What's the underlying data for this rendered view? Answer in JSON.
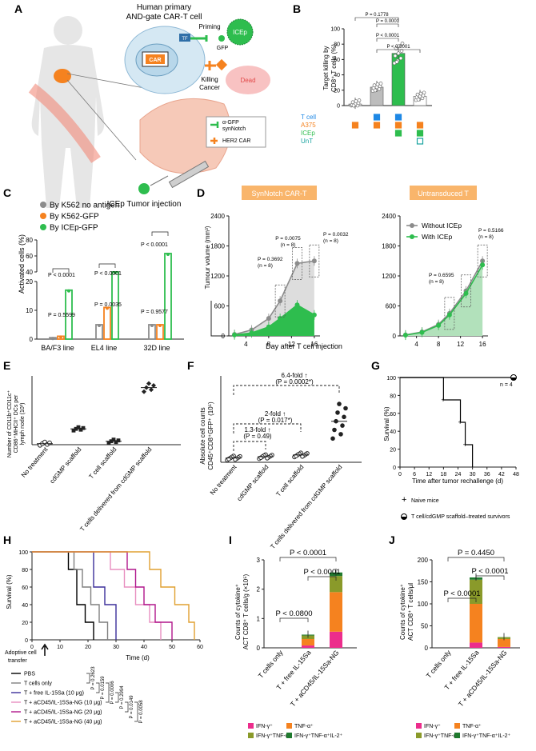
{
  "panel_letters": [
    "A",
    "B",
    "C",
    "D",
    "E",
    "F",
    "G",
    "H",
    "I",
    "J"
  ],
  "colors": {
    "orange": "#f5821f",
    "green": "#2ebd4e",
    "gray": "#8c8c8c",
    "blue": "#1e88e5",
    "teal": "#19a3a0",
    "pink": "#ec2d8c",
    "olive": "#8a9a2a",
    "darkgreen": "#1f7a2e",
    "body": "#e6e6e6"
  },
  "A": {
    "title_line1": "Human primary",
    "title_line2": "AND-gate CAR-T cell",
    "priming": "Priming",
    "icep": "ICEp",
    "gfp": "GFP",
    "tf": "TF",
    "car": "CAR",
    "killing": "Killing",
    "cancer": "Cancer",
    "dead": "Dead",
    "legend1_line1": "α-GFP",
    "legend1_line2": "synNotch",
    "legend2": "HER2 CAR",
    "injection": "ICEp Tumor injection"
  },
  "chart_data": [
    {
      "panel": "B",
      "type": "bar",
      "ylabel_line1": "Target killing by",
      "ylabel_line2": "CD8⁺ T cells (%)",
      "ylim": [
        0,
        100
      ],
      "yticks": [
        0,
        20,
        40,
        60,
        80,
        100
      ],
      "values": [
        2,
        24,
        68,
        12
      ],
      "colors": [
        "#ffffff",
        "#bdbdbd",
        "#2ebd4e",
        "#ffffff"
      ],
      "pvalues": [
        "P = 0.1778",
        "P = 0.0001",
        "P < 0.0001",
        "P < 0.0001"
      ],
      "rows": [
        "T cell",
        "A375",
        "ICEp",
        "UnT"
      ],
      "row_colors": [
        "#1e88e5",
        "#f5821f",
        "#2ebd4e",
        "#19a3a0"
      ]
    },
    {
      "panel": "C",
      "type": "bar",
      "ylabel": "Activated cells (%)",
      "yticks_low": [
        0,
        10,
        20
      ],
      "yticks_high": [
        40,
        60,
        80
      ],
      "categories": [
        "BA/F3 line",
        "EL4 line",
        "32D line"
      ],
      "series": [
        {
          "name": "By K562 no antigen",
          "color": "#8c8c8c",
          "values": [
            0.5,
            5,
            5
          ]
        },
        {
          "name": "By K562-GFP",
          "color": "#f5821f",
          "values": [
            1.0,
            11,
            5
          ]
        },
        {
          "name": "By ICEp-GFP",
          "color": "#2ebd4e",
          "values": [
            17,
            27,
            63
          ]
        }
      ],
      "pvalues": [
        "P < 0.0001",
        "P = 0.5599",
        "P < 0.0001",
        "P = 0.0035",
        "P < 0.0001",
        "P = 0.9577"
      ]
    },
    {
      "panel": "D1",
      "type": "line",
      "title": "SynNotch CAR-T",
      "ylabel": "Tumour volume (mm³)",
      "xlabel": "Day after T cell injection",
      "x": [
        2,
        5,
        8,
        10,
        13,
        16
      ],
      "xticks": [
        4,
        8,
        12,
        16
      ],
      "ylim": [
        0,
        2400
      ],
      "yticks": [
        0,
        600,
        1200,
        1800,
        2400
      ],
      "series": [
        {
          "name": "Without ICEp",
          "color": "#8c8c8c",
          "values": [
            30,
            120,
            350,
            700,
            1450,
            1500
          ]
        },
        {
          "name": "With ICEp",
          "color": "#2ebd4e",
          "values": [
            20,
            60,
            180,
            350,
            620,
            420
          ]
        }
      ],
      "pvalues": [
        "P = 0.0075",
        "(n = 8)",
        "P = 0.3692",
        "(n = 8)",
        "P = 0.0032",
        "(n = 8)"
      ]
    },
    {
      "panel": "D2",
      "type": "line",
      "title": "Untransduced T",
      "x": [
        2,
        5,
        8,
        10,
        13,
        16
      ],
      "xticks": [
        4,
        8,
        12,
        16
      ],
      "ylim": [
        0,
        2400
      ],
      "yticks": [
        0,
        600,
        1200,
        1800,
        2400
      ],
      "series": [
        {
          "name": "Without ICEp",
          "color": "#8c8c8c",
          "values": [
            20,
            80,
            230,
            450,
            900,
            1500
          ]
        },
        {
          "name": "With ICEp",
          "color": "#2ebd4e",
          "values": [
            15,
            70,
            210,
            420,
            850,
            1420
          ]
        }
      ],
      "pvalues": [
        "P = 0.5166",
        "(n = 8)",
        "P = 0.6595",
        "(n = 8)"
      ]
    },
    {
      "panel": "E",
      "type": "scatter",
      "ylabel_line1": "Number of CD11b⁺CD11c⁺",
      "ylabel_line2": "CD86⁺MHCII⁺ DCs per",
      "ylabel_line3": "lymph node (10³)",
      "categories": [
        "No treatment",
        "cdGMP scaffold",
        "T cell scaffold",
        "T cells delivered from cdGMP scaffold"
      ],
      "values": [
        1.5,
        23,
        5,
        83
      ],
      "ylim": [
        0,
        100
      ]
    },
    {
      "panel": "F",
      "type": "scatter",
      "ylabel_line1": "Absolute cell counts",
      "ylabel_line2": "CD45⁺CD8⁺GFP⁺ (10⁵)",
      "categories": [
        "No treatment",
        "cdGMP scaffold",
        "T cell scaffold",
        "T cells delivered from cdGMP scaffold"
      ],
      "values": [
        0.1,
        0.13,
        0.17,
        0.95
      ],
      "ylim": [
        0,
        2
      ],
      "annotations": [
        "6.4-fold ↑",
        "(P = 0.0002*)",
        "2-fold ↑",
        "(P = 0.017*)",
        "1.3-fold ↑",
        "(P = 0.49)"
      ]
    },
    {
      "panel": "G",
      "type": "line",
      "ylabel": "Survival (%)",
      "xlabel": "Time after tumor rechallenge (d)",
      "xticks": [
        0,
        6,
        12,
        18,
        24,
        30,
        36,
        42,
        48
      ],
      "yticks": [
        0,
        20,
        40,
        60,
        80,
        100
      ],
      "series": [
        {
          "name": "Naive mice",
          "color": "#000000"
        },
        {
          "name": "T cell/cdGMP scaffold–treated survivors",
          "color": "#000000"
        }
      ],
      "n_label": "n = 4"
    },
    {
      "panel": "H",
      "type": "line",
      "ylabel": "Survival (%)",
      "xlabel": "Time (d)",
      "xticks": [
        0,
        10,
        20,
        30,
        40,
        50,
        60
      ],
      "yticks": [
        0,
        20,
        40,
        60,
        80,
        100
      ],
      "arrow_label_line1": "Adoptive cell",
      "arrow_label_line2": "transfer",
      "series": [
        {
          "name": "PBS",
          "color": "#000000"
        },
        {
          "name": "T cells only",
          "color": "#7f7f7f"
        },
        {
          "name": "T + free IL-15Sa (10 μg)",
          "color": "#3b2f9a"
        },
        {
          "name": "T + aCD45/IL-15Sa-NG (10 μg)",
          "color": "#e88fc0"
        },
        {
          "name": "T + aCD45/IL-15Sa-NG (20 μg)",
          "color": "#b0178c"
        },
        {
          "name": "T + aCD45/IL-15Sa-NG (40 μg)",
          "color": "#e0a030"
        }
      ],
      "pvalues": [
        "P = 0.2623",
        "P = 0.0159",
        "P = 0.0006",
        "P = 0.2994",
        "P = 0.0149",
        "P = 0.0058"
      ]
    },
    {
      "panel": "I",
      "type": "bar",
      "ylabel_line1": "Counts of cytokine⁺",
      "ylabel_line2": "ACT CD8⁺ T cells/g (×10⁵)",
      "categories": [
        "T cells only",
        "T + free IL-15Sa",
        "T + aCD45/IL-15Sa-NG"
      ],
      "yticks": [
        0,
        1,
        2,
        3
      ],
      "ylim": [
        0,
        3
      ],
      "stacks": [
        {
          "name": "IFN-γ⁺",
          "color": "#ec2d8c",
          "values": [
            0,
            0.08,
            0.55
          ]
        },
        {
          "name": "TNF-α⁺",
          "color": "#f5821f",
          "values": [
            0,
            0.22,
            1.35
          ]
        },
        {
          "name": "IFN-γ⁺TNF-α⁺",
          "color": "#8a9a2a",
          "values": [
            0,
            0.12,
            0.55
          ]
        },
        {
          "name": "IFN-γ⁺TNF-α⁺IL-2⁺",
          "color": "#1f7a2e",
          "values": [
            0,
            0.03,
            0.12
          ]
        }
      ],
      "pvalues": [
        "P < 0.0001",
        "P < 0.0001",
        "P < 0.0800"
      ]
    },
    {
      "panel": "J",
      "type": "bar",
      "ylabel_line1": "Counts of cytokine⁺",
      "ylabel_line2": "ACT CD8⁺ T cells/μl",
      "categories": [
        "T cells only",
        "T + free IL-15Sa",
        "T + aCD45/IL-15Sa-NG"
      ],
      "yticks": [
        0,
        50,
        100,
        150,
        200
      ],
      "ylim": [
        0,
        200
      ],
      "stacks": [
        {
          "name": "IFN-γ⁺",
          "color": "#ec2d8c",
          "values": [
            0,
            12,
            2
          ]
        },
        {
          "name": "TNF-α⁺",
          "color": "#f5821f",
          "values": [
            0,
            88,
            18
          ]
        },
        {
          "name": "IFN-γ⁺TNF-α⁺",
          "color": "#8a9a2a",
          "values": [
            0,
            55,
            4
          ]
        },
        {
          "name": "IFN-γ⁺TNF-α⁺IL-2⁺",
          "color": "#1f7a2e",
          "values": [
            0,
            5,
            0.5
          ]
        }
      ],
      "pvalues": [
        "P = 0.4450",
        "P < 0.0001",
        "P < 0.0001"
      ]
    }
  ]
}
